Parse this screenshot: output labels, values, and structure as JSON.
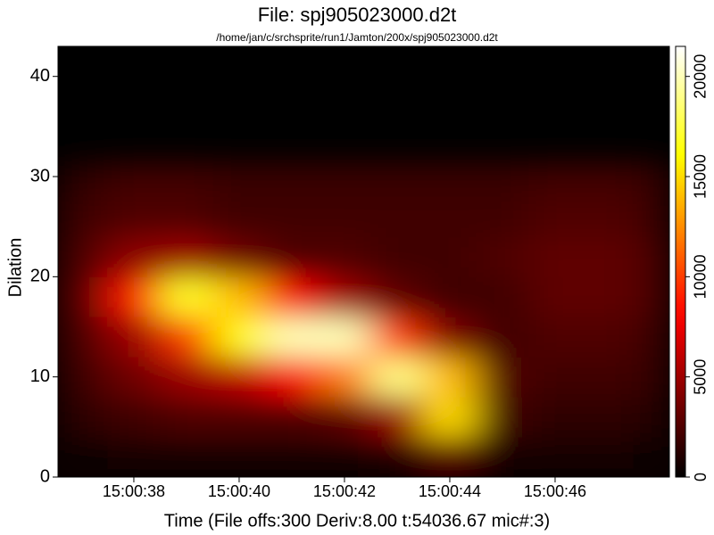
{
  "chart_data": {
    "type": "heatmap",
    "title": "File: spj905023000.d2t",
    "subtitle": "/home/jan/c/srchsprite/run1/Jamton/200x/spj905023000.d2t",
    "xlabel": "Time (File offs:300 Deriv:8.00 t:54036.67 mic#:3)",
    "ylabel": "Dilation",
    "xlim": [
      36.56,
      48.17
    ],
    "xticks": [
      {
        "value": 38,
        "label": "15:00:38"
      },
      {
        "value": 40,
        "label": "15:00:40"
      },
      {
        "value": 42,
        "label": "15:00:42"
      },
      {
        "value": 44,
        "label": "15:00:44"
      },
      {
        "value": 46,
        "label": "15:00:46"
      }
    ],
    "ylim": [
      0,
      43
    ],
    "yticks": [
      0,
      10,
      20,
      30,
      40
    ],
    "xbins": [
      36.56,
      37.5,
      38.5,
      39.5,
      40.5,
      41.5,
      42.5,
      43.5,
      44.5,
      45.5,
      46.5,
      47.5,
      48.17
    ],
    "ybins": [
      0,
      4,
      8,
      12,
      16,
      20,
      24,
      28,
      31.5
    ],
    "z": [
      [
        500,
        800,
        800,
        800,
        800,
        800,
        1000,
        3000,
        800,
        600,
        600,
        500
      ],
      [
        1500,
        2000,
        2500,
        2500,
        2500,
        3000,
        5000,
        15000,
        2000,
        1500,
        1500,
        1200
      ],
      [
        2000,
        3500,
        5000,
        6000,
        8000,
        12000,
        19000,
        14000,
        2500,
        2000,
        2000,
        1800
      ],
      [
        2500,
        5000,
        10000,
        16000,
        20000,
        20000,
        10000,
        4000,
        2000,
        2500,
        2500,
        2000
      ],
      [
        3000,
        9000,
        17000,
        14000,
        8000,
        5000,
        3000,
        2000,
        2000,
        3000,
        3000,
        2500
      ],
      [
        2500,
        4500,
        5000,
        3500,
        2500,
        2500,
        2000,
        2000,
        2500,
        3000,
        3000,
        2500
      ],
      [
        2000,
        2500,
        2500,
        2000,
        2000,
        2000,
        2000,
        2000,
        2000,
        2500,
        2500,
        2000
      ],
      [
        1500,
        2000,
        2000,
        1800,
        1800,
        1800,
        1800,
        1800,
        1800,
        2000,
        2000,
        1800
      ]
    ],
    "colormap": "hot",
    "zlim": [
      0,
      21500
    ],
    "zticks": [
      0,
      5000,
      10000,
      15000,
      20000
    ]
  }
}
